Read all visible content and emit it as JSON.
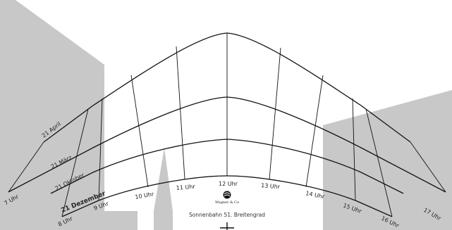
{
  "diagram": {
    "title": "Sonnenbahn 51. Breitengrad",
    "logo_text": "Wagner & Co",
    "date_labels": [
      "21 April",
      "21 März",
      "21 Oktober",
      "21 Dezember"
    ],
    "hour_labels": [
      "7 Uhr",
      "8 Uhr",
      "9 Uhr",
      "10 Uhr",
      "11 Uhr",
      "12 Uhr",
      "13 Uhr",
      "14 Uhr",
      "15 Uhr",
      "16 Uhr",
      "17 Uhr"
    ]
  },
  "colors": {
    "background": "#ffffff",
    "shading": "#c8c8c8",
    "lines": "#111111",
    "text": "#222222"
  }
}
